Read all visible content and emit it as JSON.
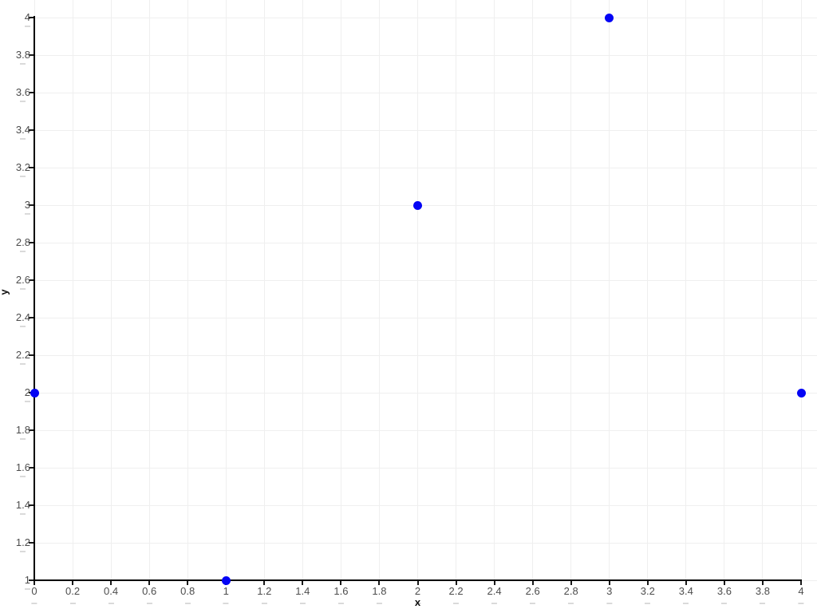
{
  "chart_data": {
    "type": "scatter",
    "title": "",
    "xlabel": "x",
    "ylabel": "y",
    "xlim": [
      0,
      4.08
    ],
    "ylim": [
      1,
      4.1
    ],
    "grid": true,
    "legend": null,
    "points": [
      {
        "x": 0,
        "y": 2
      },
      {
        "x": 1,
        "y": 1
      },
      {
        "x": 2,
        "y": 3
      },
      {
        "x": 3,
        "y": 4
      },
      {
        "x": 4,
        "y": 2
      }
    ],
    "x_tick_values": [
      0,
      0.2,
      0.4,
      0.6,
      0.8,
      1,
      1.2,
      1.4,
      1.6,
      1.8,
      2,
      2.2,
      2.4,
      2.6,
      2.8,
      3,
      3.2,
      3.4,
      3.6,
      3.8,
      4
    ],
    "x_tick_labels": [
      "0",
      "0.2",
      "0.4",
      "0.6",
      "0.8",
      "1",
      "1.2",
      "1.4",
      "1.6",
      "1.8",
      "2",
      "2.2",
      "2.4",
      "2.6",
      "2.8",
      "3",
      "3.2",
      "3.4",
      "3.6",
      "3.8",
      "4"
    ],
    "y_tick_values": [
      1,
      1.2,
      1.4,
      1.6,
      1.8,
      2,
      2.2,
      2.4,
      2.6,
      2.8,
      3,
      3.2,
      3.4,
      3.6,
      3.8,
      4
    ],
    "y_tick_labels": [
      "1",
      "1.2",
      "1.4",
      "1.6",
      "1.8",
      "2",
      "2.2",
      "2.4",
      "2.6",
      "2.8",
      "3",
      "3.2",
      "3.4",
      "3.6",
      "3.8",
      "4"
    ],
    "colors": {
      "point": "#0404f5",
      "grid": "#efefef",
      "axis": "#000000",
      "tick_label": "#4d4d4d",
      "tick_shadow": "#dadada",
      "background": "#ffffff"
    }
  }
}
